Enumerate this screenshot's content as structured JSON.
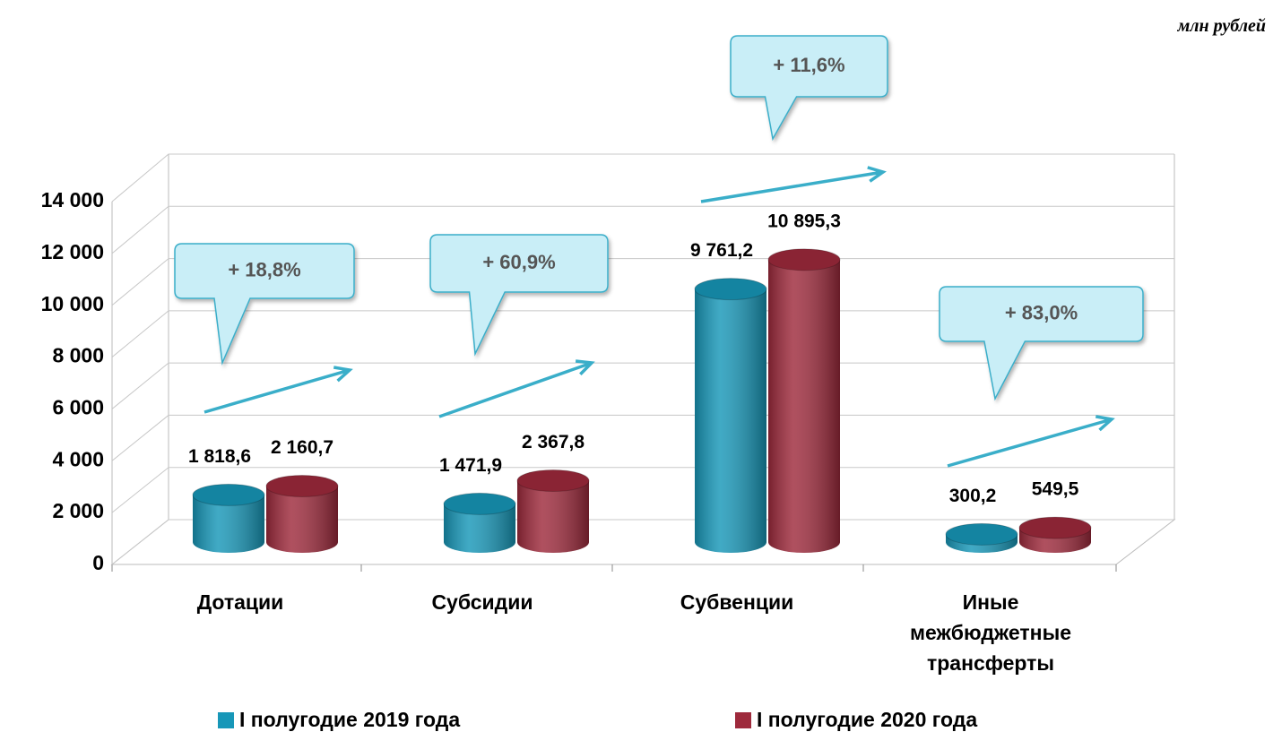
{
  "chart_data": {
    "type": "bar3d",
    "unit": "млн рублей",
    "categories": [
      "Дотации",
      "Субсидии",
      "Субвенции",
      "Иные межбюджетные трансферты"
    ],
    "series": [
      {
        "name": "I полугодие 2019 года",
        "color": "#1797b8",
        "values": [
          1818.6,
          1471.9,
          9761.2,
          300.2
        ],
        "value_labels": [
          "1 818,6",
          "1 471,9",
          "9 761,2",
          "300,2"
        ]
      },
      {
        "name": "I полугодие 2020 года",
        "color": "#9e2a3c",
        "values": [
          2160.7,
          2367.8,
          10895.3,
          549.5
        ],
        "value_labels": [
          "2 160,7",
          "2 367,8",
          "10 895,3",
          "549,5"
        ]
      }
    ],
    "annotations": [
      "+ 18,8%",
      "+ 60,9%",
      "+ 11,6%",
      "+ 83,0%"
    ],
    "ylim": [
      0,
      14000
    ],
    "yticks": [
      0,
      {
        "value": 2000,
        "label": "2 000"
      },
      {
        "value": 4000,
        "label": "4 000"
      },
      {
        "value": 6000,
        "label": "6 000"
      },
      {
        "value": 8000,
        "label": "8 000"
      },
      {
        "value": 10000,
        "label": "10 000"
      },
      {
        "value": 12000,
        "label": "12 000"
      },
      {
        "value": 14000,
        "label": "14 000"
      }
    ],
    "grid": true,
    "legend": "bottom"
  }
}
